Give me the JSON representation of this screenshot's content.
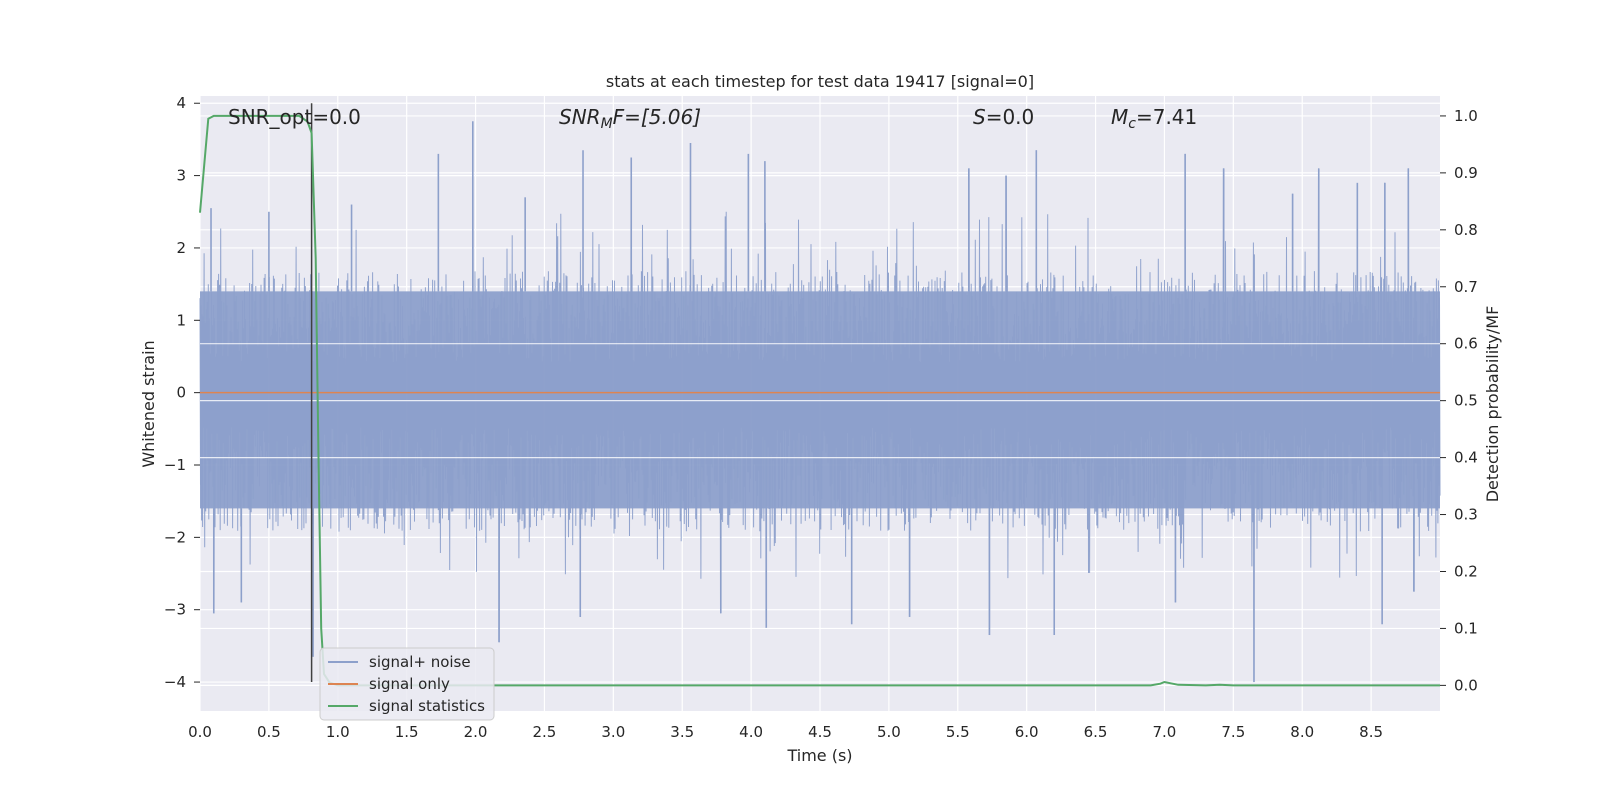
{
  "chart_data": {
    "type": "line",
    "title": "stats at each timestep for test data 19417 [signal=0]",
    "xlabel": "Time (s)",
    "ylabel_left": "Whitened strain",
    "ylabel_right": "Detection probability/MF",
    "xlim": [
      0.0,
      9.0
    ],
    "ylim_left": [
      -4.4,
      4.1
    ],
    "ylim_right": [
      -0.045,
      1.035
    ],
    "x_ticks": [
      "0.0",
      "0.5",
      "1.0",
      "1.5",
      "2.0",
      "2.5",
      "3.0",
      "3.5",
      "4.0",
      "4.5",
      "5.0",
      "5.5",
      "6.0",
      "6.5",
      "7.0",
      "7.5",
      "8.0",
      "8.5"
    ],
    "x_tick_values": [
      0.0,
      0.5,
      1.0,
      1.5,
      2.0,
      2.5,
      3.0,
      3.5,
      4.0,
      4.5,
      5.0,
      5.5,
      6.0,
      6.5,
      7.0,
      7.5,
      8.0,
      8.5
    ],
    "y_left_ticks": [
      "4",
      "3",
      "2",
      "1",
      "0",
      "−1",
      "−2",
      "−3",
      "−4"
    ],
    "y_left_tick_values": [
      4,
      3,
      2,
      1,
      0,
      -1,
      -2,
      -3,
      -4
    ],
    "y_right_ticks": [
      "1.0",
      "0.9",
      "0.8",
      "0.7",
      "0.6",
      "0.5",
      "0.4",
      "0.3",
      "0.2",
      "0.1",
      "0.0"
    ],
    "y_right_tick_values": [
      1.0,
      0.9,
      0.8,
      0.7,
      0.6,
      0.5,
      0.4,
      0.3,
      0.2,
      0.1,
      0.0
    ],
    "grid": true,
    "legend_placement": "lower-left",
    "annotations": {
      "snr_opt": "SNR_opt=0.0",
      "snr_mf_label": "SNR",
      "snr_mf_sub": "M",
      "snr_mf_rest": "F=[5.06]",
      "s_label": "S",
      "s_rest": "=0.0",
      "mc_label": "M",
      "mc_sub": "c",
      "mc_rest": "=7.41"
    },
    "marker_line_x": 0.81,
    "series": [
      {
        "name": "signal+ noise",
        "color": "#8da0cb",
        "axis": "left",
        "envelope_upper_typical": 1.4,
        "envelope_lower_typical": -1.6,
        "peak_max": 3.75,
        "peak_min": -4.0,
        "peaks_up": [
          [
            0.08,
            2.55
          ],
          [
            0.5,
            2.5
          ],
          [
            1.1,
            2.6
          ],
          [
            1.73,
            3.3
          ],
          [
            1.98,
            3.75
          ],
          [
            2.36,
            2.7
          ],
          [
            2.78,
            3.35
          ],
          [
            3.13,
            3.25
          ],
          [
            3.56,
            3.45
          ],
          [
            3.98,
            3.3
          ],
          [
            4.1,
            3.2
          ],
          [
            5.58,
            3.1
          ],
          [
            5.85,
            3.0
          ],
          [
            6.07,
            3.35
          ],
          [
            7.15,
            3.3
          ],
          [
            7.43,
            3.1
          ],
          [
            7.93,
            2.75
          ],
          [
            8.12,
            3.1
          ],
          [
            8.4,
            2.9
          ],
          [
            8.6,
            2.9
          ],
          [
            8.77,
            3.1
          ]
        ],
        "peaks_down": [
          [
            0.1,
            -3.05
          ],
          [
            0.3,
            -2.9
          ],
          [
            0.82,
            -3.65
          ],
          [
            2.17,
            -3.45
          ],
          [
            2.76,
            -3.1
          ],
          [
            3.78,
            -3.05
          ],
          [
            4.11,
            -3.25
          ],
          [
            4.73,
            -3.2
          ],
          [
            5.15,
            -3.1
          ],
          [
            5.73,
            -3.35
          ],
          [
            6.2,
            -3.35
          ],
          [
            7.08,
            -2.9
          ],
          [
            7.65,
            -4.0
          ],
          [
            8.58,
            -3.2
          ],
          [
            8.81,
            -2.75
          ]
        ]
      },
      {
        "name": "signal only",
        "color": "#dd8452",
        "axis": "left",
        "x": [
          0.0,
          9.0
        ],
        "y": [
          0.0,
          0.0
        ]
      },
      {
        "name": "signal statistics",
        "color": "#55a868",
        "axis": "right",
        "x": [
          0.0,
          0.06,
          0.1,
          0.2,
          0.4,
          0.6,
          0.72,
          0.78,
          0.81,
          0.84,
          0.86,
          0.88,
          0.9,
          0.94,
          1.0,
          2.0,
          4.0,
          6.0,
          6.9,
          6.97,
          7.0,
          7.1,
          7.3,
          7.4,
          7.5,
          8.0,
          9.0
        ],
        "y": [
          0.83,
          0.995,
          1.0,
          1.0,
          1.0,
          1.0,
          1.0,
          0.99,
          0.97,
          0.75,
          0.4,
          0.1,
          0.02,
          0.005,
          0.0,
          0.0,
          0.0,
          0.0,
          0.0,
          0.003,
          0.006,
          0.001,
          0.0,
          0.001,
          0.0,
          0.0,
          0.0
        ]
      }
    ]
  }
}
